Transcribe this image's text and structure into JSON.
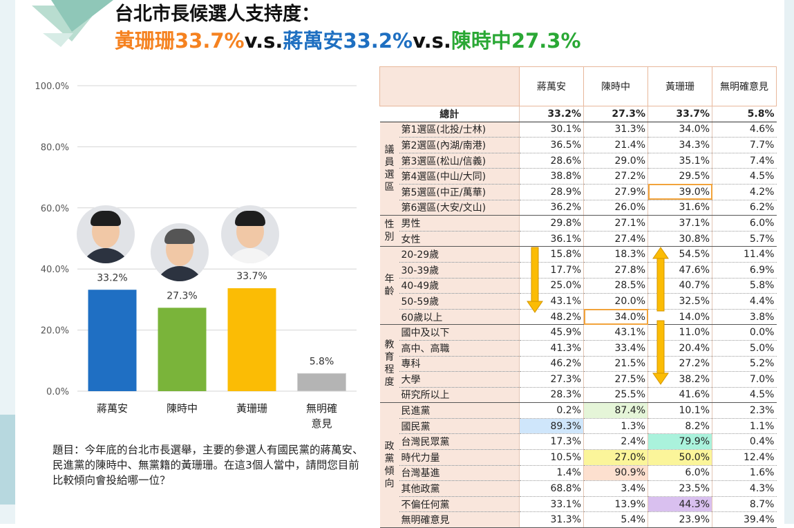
{
  "header": {
    "title_line1": "台北市長候選人支持度：",
    "seg1": "黃珊珊33.7%",
    "seg2": "v.s.",
    "seg3": "蔣萬安33.2%",
    "seg4": "v.s.",
    "seg5": "陳時中27.3%"
  },
  "chart_data": {
    "type": "bar",
    "categories": [
      "蔣萬安",
      "陳時中",
      "黃珊珊",
      "無明確\n意見"
    ],
    "values": [
      33.2,
      27.3,
      33.7,
      5.8
    ],
    "value_labels": [
      "33.2%",
      "27.3%",
      "33.7%",
      "5.8%"
    ],
    "colors": [
      "#1f6fc3",
      "#7ab43a",
      "#fbbc05",
      "#b4b4b4"
    ],
    "ylim": [
      0,
      100
    ],
    "yticks": [
      "0.0%",
      "20.0%",
      "40.0%",
      "60.0%",
      "80.0%",
      "100.0%"
    ],
    "grid": true
  },
  "question": "題目：今年底的台北市長選舉，主要的參選人有國民黨的蔣萬安、民進黨的陳時中、無黨籍的黃珊珊。在這3個人當中，請問您目前比較傾向會投給哪一位？",
  "table": {
    "columns": [
      "蔣萬安",
      "陳時中",
      "黃珊珊",
      "無明確意見"
    ],
    "total": {
      "label": "總計",
      "values": [
        "33.2%",
        "27.3%",
        "33.7%",
        "5.8%"
      ]
    },
    "groups": [
      {
        "name": "議員選區",
        "rows": [
          {
            "label": "第1選區(北投/士林)",
            "values": [
              "30.1%",
              "31.3%",
              "34.0%",
              "4.6%"
            ]
          },
          {
            "label": "第2選區(內湖/南港)",
            "values": [
              "36.5%",
              "21.4%",
              "34.3%",
              "7.7%"
            ]
          },
          {
            "label": "第3選區(松山/信義)",
            "values": [
              "28.6%",
              "29.0%",
              "35.1%",
              "7.4%"
            ]
          },
          {
            "label": "第4選區(中山/大同)",
            "values": [
              "38.8%",
              "27.2%",
              "29.5%",
              "4.5%"
            ]
          },
          {
            "label": "第5選區(中正/萬華)",
            "values": [
              "28.9%",
              "27.9%",
              "39.0%",
              "4.2%"
            ]
          },
          {
            "label": "第6選區(大安/文山)",
            "values": [
              "36.2%",
              "26.0%",
              "31.6%",
              "6.2%"
            ]
          }
        ]
      },
      {
        "name": "性別",
        "rows": [
          {
            "label": "男性",
            "values": [
              "29.8%",
              "27.1%",
              "37.1%",
              "6.0%"
            ]
          },
          {
            "label": "女性",
            "values": [
              "36.1%",
              "27.4%",
              "30.8%",
              "5.7%"
            ]
          }
        ]
      },
      {
        "name": "年齡",
        "rows": [
          {
            "label": "20-29歲",
            "values": [
              "15.8%",
              "18.3%",
              "54.5%",
              "11.4%"
            ]
          },
          {
            "label": "30-39歲",
            "values": [
              "17.7%",
              "27.8%",
              "47.6%",
              "6.9%"
            ]
          },
          {
            "label": "40-49歲",
            "values": [
              "25.0%",
              "28.5%",
              "40.7%",
              "5.8%"
            ]
          },
          {
            "label": "50-59歲",
            "values": [
              "43.1%",
              "20.0%",
              "32.5%",
              "4.4%"
            ]
          },
          {
            "label": "60歲以上",
            "values": [
              "48.2%",
              "34.0%",
              "14.0%",
              "3.8%"
            ]
          }
        ]
      },
      {
        "name": "教育程度",
        "rows": [
          {
            "label": "國中及以下",
            "values": [
              "45.9%",
              "43.1%",
              "11.0%",
              "0.0%"
            ]
          },
          {
            "label": "高中、高職",
            "values": [
              "41.3%",
              "33.4%",
              "20.4%",
              "5.0%"
            ]
          },
          {
            "label": "專科",
            "values": [
              "46.2%",
              "21.5%",
              "27.2%",
              "5.2%"
            ]
          },
          {
            "label": "大學",
            "values": [
              "27.3%",
              "27.5%",
              "38.2%",
              "7.0%"
            ]
          },
          {
            "label": "研究所以上",
            "values": [
              "28.3%",
              "25.5%",
              "41.6%",
              "4.5%"
            ]
          }
        ]
      },
      {
        "name": "政黨傾向",
        "rows": [
          {
            "label": "民進黨",
            "values": [
              "0.2%",
              "87.4%",
              "10.1%",
              "2.3%"
            ]
          },
          {
            "label": "國民黨",
            "values": [
              "89.3%",
              "1.3%",
              "8.2%",
              "1.1%"
            ]
          },
          {
            "label": "台灣民眾黨",
            "values": [
              "17.3%",
              "2.4%",
              "79.9%",
              "0.4%"
            ]
          },
          {
            "label": "時代力量",
            "values": [
              "10.5%",
              "27.0%",
              "50.0%",
              "12.4%"
            ]
          },
          {
            "label": "台灣基進",
            "values": [
              "1.4%",
              "90.9%",
              "6.0%",
              "1.6%"
            ]
          },
          {
            "label": "其他政黨",
            "values": [
              "68.8%",
              "3.4%",
              "23.5%",
              "4.3%"
            ]
          },
          {
            "label": "不偏任何黨",
            "values": [
              "33.1%",
              "13.9%",
              "44.3%",
              "8.7%"
            ]
          },
          {
            "label": "無明確意見",
            "values": [
              "31.3%",
              "5.4%",
              "23.9%",
              "39.4%"
            ]
          }
        ]
      }
    ]
  }
}
